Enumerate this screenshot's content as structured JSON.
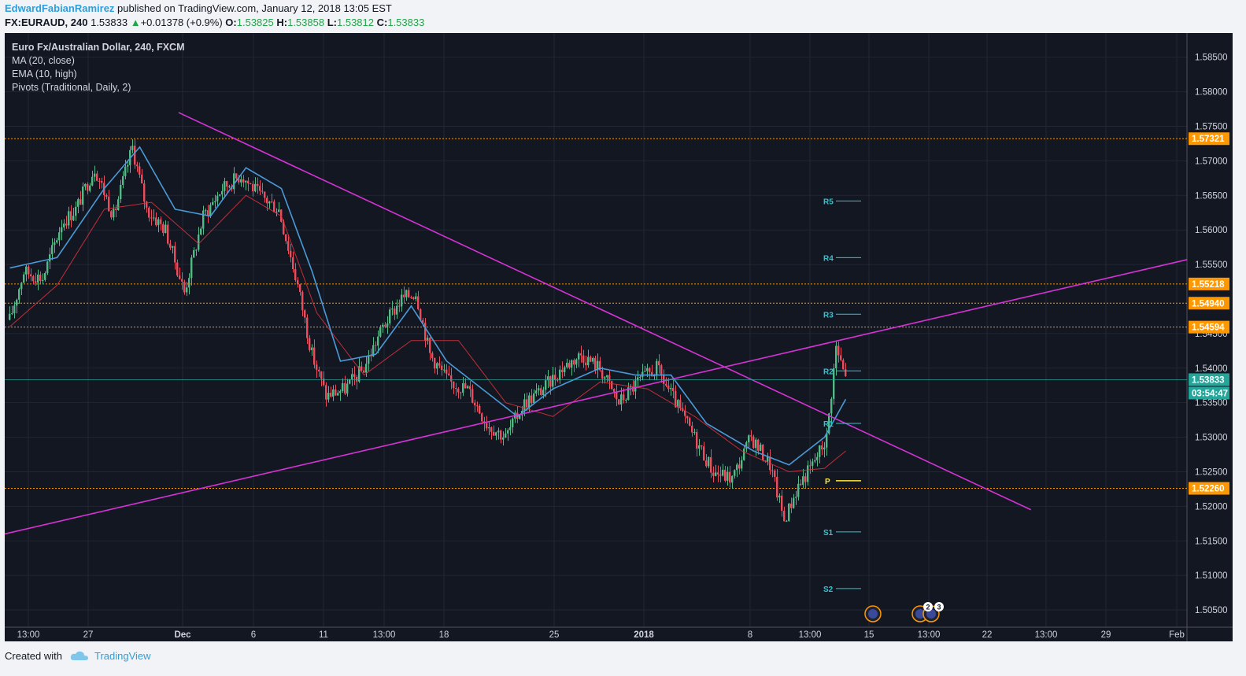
{
  "header": {
    "author": "EdwardFabianRamirez",
    "published": " published on TradingView.com, January 12, 2018 13:05 EST",
    "symbol": "FX:EURAUD, 240",
    "last": "1.53833",
    "change": "+0.01378 (+0.9%)",
    "o_label": "O:",
    "o": "1.53825",
    "h_label": "H:",
    "h": "1.53858",
    "l_label": "L:",
    "l": "1.53812",
    "c_label": "C:",
    "c": "1.53833"
  },
  "legend": {
    "title": "Euro Fx/Australian Dollar, 240, FXCM",
    "ma": "MA (20, close)",
    "ema": "EMA (10, high)",
    "pivots": "Pivots (Traditional, Daily, 2)"
  },
  "footer": {
    "created_with": "Created with",
    "brand": "TradingView"
  },
  "colors": {
    "bg": "#131722",
    "up": "#53b987",
    "down": "#eb4d5c",
    "grid": "#232735",
    "ma": "#e0323c",
    "ema": "#4b9ad8",
    "trend": "#d633d6",
    "level": "#ff9800",
    "pivot": "#2ec5d3",
    "last": "#26a69a"
  },
  "chart_data": {
    "type": "candlestick",
    "title": "Euro Fx/Australian Dollar, 240, FXCM",
    "ylim": [
      1.5025,
      1.5885
    ],
    "x_ticks": [
      "13:00",
      "27",
      "Dec",
      "6",
      "11",
      "13:00",
      "18",
      "25",
      "2018",
      "8",
      "13:00",
      "15",
      "13:00",
      "22",
      "13:00",
      "29",
      "Feb"
    ],
    "y_ticks": [
      "1.58500",
      "1.58000",
      "1.57500",
      "1.57000",
      "1.56500",
      "1.56000",
      "1.55500",
      "1.54500",
      "1.54000",
      "1.53500",
      "1.53000",
      "1.52500",
      "1.52000",
      "1.51500",
      "1.51000",
      "1.50500"
    ],
    "horizontal_levels": [
      "1.57321",
      "1.55218",
      "1.54940",
      "1.54594",
      "1.52260"
    ],
    "last_price": "1.53833",
    "countdown": "03:54:47",
    "pivots": [
      {
        "name": "R5",
        "value": 1.5642
      },
      {
        "name": "R4",
        "value": 1.556
      },
      {
        "name": "R3",
        "value": 1.5478
      },
      {
        "name": "R2",
        "value": 1.5396
      },
      {
        "name": "R1",
        "value": 1.532
      },
      {
        "name": "P",
        "value": 1.5237
      },
      {
        "name": "S1",
        "value": 1.5163
      },
      {
        "name": "S2",
        "value": 1.5081
      }
    ],
    "trendlines": [
      {
        "from": [
          0,
          1.516
        ],
        "to": [
          1.0,
          1.5557
        ]
      },
      {
        "from": [
          0.147,
          1.577
        ],
        "to": [
          0.868,
          1.5195
        ]
      }
    ],
    "anchors": [
      [
        0,
        1.547
      ],
      [
        6,
        1.554
      ],
      [
        14,
        1.553
      ],
      [
        22,
        1.561
      ],
      [
        28,
        1.563
      ],
      [
        36,
        1.569
      ],
      [
        44,
        1.562
      ],
      [
        52,
        1.572
      ],
      [
        58,
        1.563
      ],
      [
        66,
        1.56
      ],
      [
        74,
        1.551
      ],
      [
        82,
        1.562
      ],
      [
        90,
        1.566
      ],
      [
        98,
        1.568
      ],
      [
        106,
        1.565
      ],
      [
        114,
        1.563
      ],
      [
        122,
        1.552
      ],
      [
        128,
        1.542
      ],
      [
        134,
        1.536
      ],
      [
        142,
        1.537
      ],
      [
        150,
        1.54
      ],
      [
        158,
        1.546
      ],
      [
        166,
        1.55
      ],
      [
        172,
        1.551
      ],
      [
        178,
        1.542
      ],
      [
        186,
        1.538
      ],
      [
        194,
        1.537
      ],
      [
        202,
        1.532
      ],
      [
        210,
        1.53
      ],
      [
        218,
        1.535
      ],
      [
        226,
        1.537
      ],
      [
        234,
        1.54
      ],
      [
        242,
        1.542
      ],
      [
        250,
        1.54
      ],
      [
        258,
        1.535
      ],
      [
        266,
        1.538
      ],
      [
        274,
        1.54
      ],
      [
        282,
        1.535
      ],
      [
        290,
        1.53
      ],
      [
        298,
        1.525
      ],
      [
        306,
        1.524
      ],
      [
        314,
        1.53
      ],
      [
        322,
        1.526
      ],
      [
        328,
        1.518
      ],
      [
        334,
        1.523
      ],
      [
        340,
        1.526
      ],
      [
        346,
        1.53
      ],
      [
        350,
        1.543
      ],
      [
        354,
        1.5385
      ]
    ],
    "ma_anchors": [
      [
        0,
        1.546
      ],
      [
        20,
        1.552
      ],
      [
        40,
        1.563
      ],
      [
        60,
        1.564
      ],
      [
        80,
        1.558
      ],
      [
        100,
        1.565
      ],
      [
        115,
        1.562
      ],
      [
        130,
        1.548
      ],
      [
        150,
        1.539
      ],
      [
        170,
        1.544
      ],
      [
        190,
        1.544
      ],
      [
        210,
        1.535
      ],
      [
        230,
        1.533
      ],
      [
        250,
        1.538
      ],
      [
        270,
        1.537
      ],
      [
        290,
        1.533
      ],
      [
        310,
        1.528
      ],
      [
        330,
        1.525
      ],
      [
        345,
        1.5255
      ],
      [
        354,
        1.528
      ]
    ],
    "ema_anchors": [
      [
        0,
        1.5545
      ],
      [
        20,
        1.556
      ],
      [
        40,
        1.566
      ],
      [
        55,
        1.572
      ],
      [
        70,
        1.563
      ],
      [
        85,
        1.562
      ],
      [
        100,
        1.569
      ],
      [
        115,
        1.566
      ],
      [
        128,
        1.554
      ],
      [
        140,
        1.541
      ],
      [
        155,
        1.542
      ],
      [
        170,
        1.549
      ],
      [
        185,
        1.541
      ],
      [
        200,
        1.537
      ],
      [
        215,
        1.533
      ],
      [
        230,
        1.537
      ],
      [
        250,
        1.54
      ],
      [
        265,
        1.539
      ],
      [
        280,
        1.539
      ],
      [
        295,
        1.532
      ],
      [
        315,
        1.528
      ],
      [
        330,
        1.526
      ],
      [
        345,
        1.53
      ],
      [
        354,
        1.5355
      ]
    ]
  }
}
